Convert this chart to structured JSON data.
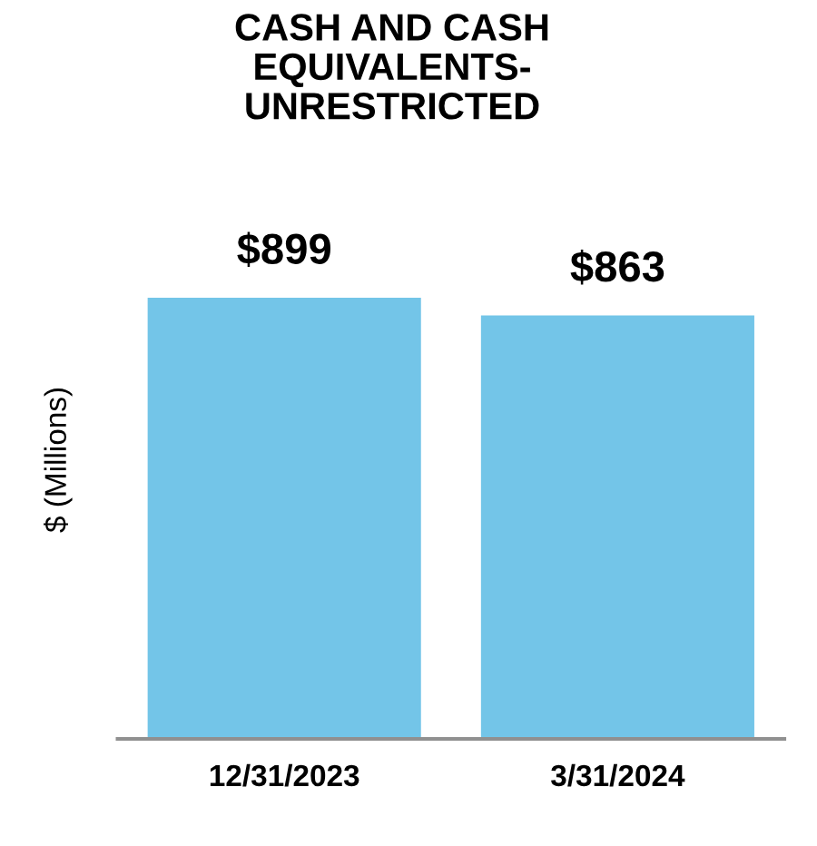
{
  "chart_data": {
    "type": "bar",
    "title": "CASH AND CASH\nEQUIVALENTS-\nUNRESTRICTED",
    "ylabel": "$ (Millions)",
    "categories": [
      "12/31/2023",
      "3/31/2024"
    ],
    "values": [
      899,
      863
    ],
    "value_labels": [
      "$899",
      "$863"
    ],
    "color": "#73c5e8",
    "tick_labels": "x",
    "grid": false,
    "legend": false
  }
}
